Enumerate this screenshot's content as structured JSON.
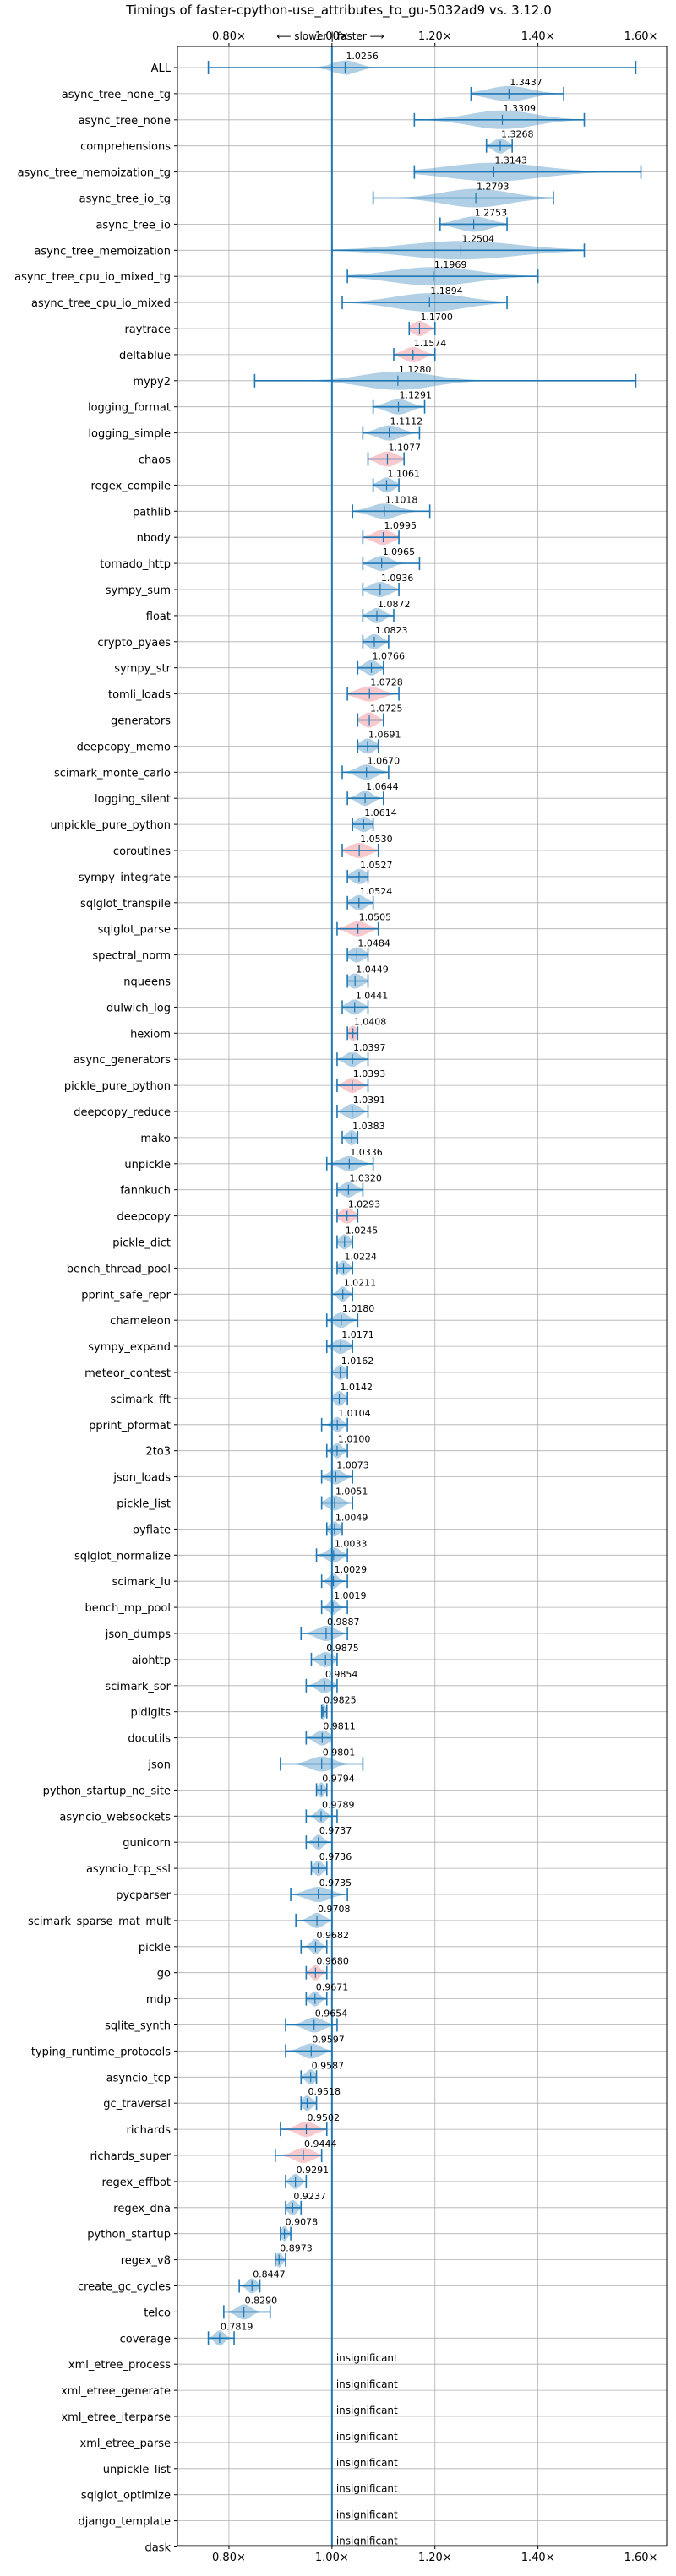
{
  "chart_data": {
    "type": "violin",
    "title": "Timings of faster-cpython-use_attributes_to_gu-5032ad9 vs. 3.12.0",
    "direction_annotation": "⟵ slower | faster ⟶",
    "xlim": [
      0.7,
      1.65
    ],
    "x_ticks": [
      {
        "value": 0.8,
        "label": "0.80×"
      },
      {
        "value": 1.0,
        "label": "1.00×"
      },
      {
        "value": 1.2,
        "label": "1.20×"
      },
      {
        "value": 1.4,
        "label": "1.40×"
      },
      {
        "value": 1.6,
        "label": "1.60×"
      }
    ],
    "grid": true,
    "reference_line": 1.0,
    "colors": {
      "normal": "#1f77b4",
      "highlight": "#e8646f"
    },
    "benchmarks": [
      {
        "name": "ALL",
        "value": 1.0256,
        "label": "1.0256",
        "lo": 0.76,
        "hi": 1.59,
        "spread": 0.05,
        "highlight": false
      },
      {
        "name": "async_tree_none_tg",
        "value": 1.3437,
        "label": "1.3437",
        "lo": 1.27,
        "hi": 1.45,
        "spread": 0.09,
        "highlight": false
      },
      {
        "name": "async_tree_none",
        "value": 1.3309,
        "label": "1.3309",
        "lo": 1.16,
        "hi": 1.49,
        "spread": 0.14,
        "highlight": false
      },
      {
        "name": "comprehensions",
        "value": 1.3268,
        "label": "1.3268",
        "lo": 1.3,
        "hi": 1.35,
        "spread": 0.03,
        "highlight": false
      },
      {
        "name": "async_tree_memoization_tg",
        "value": 1.3143,
        "label": "1.3143",
        "lo": 1.16,
        "hi": 1.6,
        "spread": 0.2,
        "highlight": false
      },
      {
        "name": "async_tree_io_tg",
        "value": 1.2793,
        "label": "1.2793",
        "lo": 1.08,
        "hi": 1.43,
        "spread": 0.14,
        "highlight": false
      },
      {
        "name": "async_tree_io",
        "value": 1.2753,
        "label": "1.2753",
        "lo": 1.21,
        "hi": 1.34,
        "spread": 0.07,
        "highlight": false
      },
      {
        "name": "async_tree_memoization",
        "value": 1.2504,
        "label": "1.2504",
        "lo": 1.0,
        "hi": 1.49,
        "spread": 0.24,
        "highlight": false
      },
      {
        "name": "async_tree_cpu_io_mixed_tg",
        "value": 1.1969,
        "label": "1.1969",
        "lo": 1.03,
        "hi": 1.4,
        "spread": 0.18,
        "highlight": false
      },
      {
        "name": "async_tree_cpu_io_mixed",
        "value": 1.1894,
        "label": "1.1894",
        "lo": 1.02,
        "hi": 1.34,
        "spread": 0.15,
        "highlight": false
      },
      {
        "name": "raytrace",
        "value": 1.17,
        "label": "1.1700",
        "lo": 1.15,
        "hi": 1.2,
        "spread": 0.03,
        "highlight": true
      },
      {
        "name": "deltablue",
        "value": 1.1574,
        "label": "1.1574",
        "lo": 1.12,
        "hi": 1.2,
        "spread": 0.04,
        "highlight": true
      },
      {
        "name": "mypy2",
        "value": 1.128,
        "label": "1.1280",
        "lo": 0.85,
        "hi": 1.59,
        "spread": 0.15,
        "highlight": false
      },
      {
        "name": "logging_format",
        "value": 1.1291,
        "label": "1.1291",
        "lo": 1.08,
        "hi": 1.18,
        "spread": 0.05,
        "highlight": false
      },
      {
        "name": "logging_simple",
        "value": 1.1112,
        "label": "1.1112",
        "lo": 1.06,
        "hi": 1.17,
        "spread": 0.05,
        "highlight": false
      },
      {
        "name": "chaos",
        "value": 1.1077,
        "label": "1.1077",
        "lo": 1.07,
        "hi": 1.14,
        "spread": 0.04,
        "highlight": true
      },
      {
        "name": "regex_compile",
        "value": 1.1061,
        "label": "1.1061",
        "lo": 1.08,
        "hi": 1.13,
        "spread": 0.03,
        "highlight": false
      },
      {
        "name": "pathlib",
        "value": 1.1018,
        "label": "1.1018",
        "lo": 1.04,
        "hi": 1.19,
        "spread": 0.06,
        "highlight": false
      },
      {
        "name": "nbody",
        "value": 1.0995,
        "label": "1.0995",
        "lo": 1.06,
        "hi": 1.13,
        "spread": 0.04,
        "highlight": true
      },
      {
        "name": "tornado_http",
        "value": 1.0965,
        "label": "1.0965",
        "lo": 1.06,
        "hi": 1.17,
        "spread": 0.04,
        "highlight": false
      },
      {
        "name": "sympy_sum",
        "value": 1.0936,
        "label": "1.0936",
        "lo": 1.06,
        "hi": 1.13,
        "spread": 0.04,
        "highlight": false
      },
      {
        "name": "float",
        "value": 1.0872,
        "label": "1.0872",
        "lo": 1.06,
        "hi": 1.12,
        "spread": 0.03,
        "highlight": false
      },
      {
        "name": "crypto_pyaes",
        "value": 1.0823,
        "label": "1.0823",
        "lo": 1.06,
        "hi": 1.11,
        "spread": 0.03,
        "highlight": false
      },
      {
        "name": "sympy_str",
        "value": 1.0766,
        "label": "1.0766",
        "lo": 1.05,
        "hi": 1.1,
        "spread": 0.03,
        "highlight": false
      },
      {
        "name": "tomli_loads",
        "value": 1.0728,
        "label": "1.0728",
        "lo": 1.03,
        "hi": 1.13,
        "spread": 0.05,
        "highlight": true
      },
      {
        "name": "generators",
        "value": 1.0725,
        "label": "1.0725",
        "lo": 1.05,
        "hi": 1.1,
        "spread": 0.03,
        "highlight": true
      },
      {
        "name": "deepcopy_memo",
        "value": 1.0691,
        "label": "1.0691",
        "lo": 1.05,
        "hi": 1.09,
        "spread": 0.03,
        "highlight": false
      },
      {
        "name": "scimark_monte_carlo",
        "value": 1.067,
        "label": "1.0670",
        "lo": 1.02,
        "hi": 1.11,
        "spread": 0.04,
        "highlight": false
      },
      {
        "name": "logging_silent",
        "value": 1.0644,
        "label": "1.0644",
        "lo": 1.03,
        "hi": 1.1,
        "spread": 0.03,
        "highlight": false
      },
      {
        "name": "unpickle_pure_python",
        "value": 1.0614,
        "label": "1.0614",
        "lo": 1.04,
        "hi": 1.08,
        "spread": 0.03,
        "highlight": false
      },
      {
        "name": "coroutines",
        "value": 1.053,
        "label": "1.0530",
        "lo": 1.02,
        "hi": 1.09,
        "spread": 0.04,
        "highlight": true
      },
      {
        "name": "sympy_integrate",
        "value": 1.0527,
        "label": "1.0527",
        "lo": 1.03,
        "hi": 1.07,
        "spread": 0.03,
        "highlight": false
      },
      {
        "name": "sqlglot_transpile",
        "value": 1.0524,
        "label": "1.0524",
        "lo": 1.03,
        "hi": 1.08,
        "spread": 0.03,
        "highlight": false
      },
      {
        "name": "sqlglot_parse",
        "value": 1.0505,
        "label": "1.0505",
        "lo": 1.01,
        "hi": 1.09,
        "spread": 0.04,
        "highlight": true
      },
      {
        "name": "spectral_norm",
        "value": 1.0484,
        "label": "1.0484",
        "lo": 1.03,
        "hi": 1.07,
        "spread": 0.03,
        "highlight": false
      },
      {
        "name": "nqueens",
        "value": 1.0449,
        "label": "1.0449",
        "lo": 1.03,
        "hi": 1.07,
        "spread": 0.03,
        "highlight": false
      },
      {
        "name": "dulwich_log",
        "value": 1.0441,
        "label": "1.0441",
        "lo": 1.02,
        "hi": 1.07,
        "spread": 0.03,
        "highlight": false
      },
      {
        "name": "hexiom",
        "value": 1.0408,
        "label": "1.0408",
        "lo": 1.03,
        "hi": 1.05,
        "spread": 0.02,
        "highlight": true
      },
      {
        "name": "async_generators",
        "value": 1.0397,
        "label": "1.0397",
        "lo": 1.01,
        "hi": 1.07,
        "spread": 0.03,
        "highlight": false
      },
      {
        "name": "pickle_pure_python",
        "value": 1.0393,
        "label": "1.0393",
        "lo": 1.01,
        "hi": 1.07,
        "spread": 0.03,
        "highlight": true
      },
      {
        "name": "deepcopy_reduce",
        "value": 1.0391,
        "label": "1.0391",
        "lo": 1.01,
        "hi": 1.07,
        "spread": 0.03,
        "highlight": false
      },
      {
        "name": "mako",
        "value": 1.0383,
        "label": "1.0383",
        "lo": 1.02,
        "hi": 1.05,
        "spread": 0.02,
        "highlight": false
      },
      {
        "name": "unpickle",
        "value": 1.0336,
        "label": "1.0336",
        "lo": 0.99,
        "hi": 1.08,
        "spread": 0.04,
        "highlight": false
      },
      {
        "name": "fannkuch",
        "value": 1.032,
        "label": "1.0320",
        "lo": 1.01,
        "hi": 1.06,
        "spread": 0.03,
        "highlight": false
      },
      {
        "name": "deepcopy",
        "value": 1.0293,
        "label": "1.0293",
        "lo": 1.01,
        "hi": 1.05,
        "spread": 0.03,
        "highlight": true
      },
      {
        "name": "pickle_dict",
        "value": 1.0245,
        "label": "1.0245",
        "lo": 1.01,
        "hi": 1.04,
        "spread": 0.02,
        "highlight": false
      },
      {
        "name": "bench_thread_pool",
        "value": 1.0224,
        "label": "1.0224",
        "lo": 1.01,
        "hi": 1.04,
        "spread": 0.02,
        "highlight": false
      },
      {
        "name": "pprint_safe_repr",
        "value": 1.0211,
        "label": "1.0211",
        "lo": 1.0,
        "hi": 1.04,
        "spread": 0.02,
        "highlight": false
      },
      {
        "name": "chameleon",
        "value": 1.018,
        "label": "1.0180",
        "lo": 0.99,
        "hi": 1.05,
        "spread": 0.03,
        "highlight": false
      },
      {
        "name": "sympy_expand",
        "value": 1.0171,
        "label": "1.0171",
        "lo": 0.99,
        "hi": 1.04,
        "spread": 0.03,
        "highlight": false
      },
      {
        "name": "meteor_contest",
        "value": 1.0162,
        "label": "1.0162",
        "lo": 1.0,
        "hi": 1.03,
        "spread": 0.02,
        "highlight": false
      },
      {
        "name": "scimark_fft",
        "value": 1.0142,
        "label": "1.0142",
        "lo": 1.0,
        "hi": 1.03,
        "spread": 0.02,
        "highlight": false
      },
      {
        "name": "pprint_pformat",
        "value": 1.0104,
        "label": "1.0104",
        "lo": 0.98,
        "hi": 1.03,
        "spread": 0.02,
        "highlight": false
      },
      {
        "name": "2to3",
        "value": 1.01,
        "label": "1.0100",
        "lo": 0.99,
        "hi": 1.03,
        "spread": 0.02,
        "highlight": false
      },
      {
        "name": "json_loads",
        "value": 1.0073,
        "label": "1.0073",
        "lo": 0.98,
        "hi": 1.04,
        "spread": 0.03,
        "highlight": false
      },
      {
        "name": "pickle_list",
        "value": 1.0051,
        "label": "1.0051",
        "lo": 0.98,
        "hi": 1.04,
        "spread": 0.03,
        "highlight": false
      },
      {
        "name": "pyflate",
        "value": 1.0049,
        "label": "1.0049",
        "lo": 0.99,
        "hi": 1.02,
        "spread": 0.02,
        "highlight": false
      },
      {
        "name": "sqlglot_normalize",
        "value": 1.0033,
        "label": "1.0033",
        "lo": 0.97,
        "hi": 1.03,
        "spread": 0.03,
        "highlight": false
      },
      {
        "name": "scimark_lu",
        "value": 1.0029,
        "label": "1.0029",
        "lo": 0.98,
        "hi": 1.03,
        "spread": 0.02,
        "highlight": false
      },
      {
        "name": "bench_mp_pool",
        "value": 1.0019,
        "label": "1.0019",
        "lo": 0.98,
        "hi": 1.03,
        "spread": 0.02,
        "highlight": false
      },
      {
        "name": "json_dumps",
        "value": 0.9887,
        "label": "0.9887",
        "lo": 0.94,
        "hi": 1.03,
        "spread": 0.04,
        "highlight": false
      },
      {
        "name": "aiohttp",
        "value": 0.9875,
        "label": "0.9875",
        "lo": 0.96,
        "hi": 1.01,
        "spread": 0.03,
        "highlight": false
      },
      {
        "name": "scimark_sor",
        "value": 0.9854,
        "label": "0.9854",
        "lo": 0.95,
        "hi": 1.01,
        "spread": 0.03,
        "highlight": false
      },
      {
        "name": "pidigits",
        "value": 0.9825,
        "label": "0.9825",
        "lo": 0.98,
        "hi": 0.99,
        "spread": 0.01,
        "highlight": false
      },
      {
        "name": "docutils",
        "value": 0.9811,
        "label": "0.9811",
        "lo": 0.95,
        "hi": 1.0,
        "spread": 0.03,
        "highlight": false
      },
      {
        "name": "json",
        "value": 0.9801,
        "label": "0.9801",
        "lo": 0.9,
        "hi": 1.06,
        "spread": 0.05,
        "highlight": false
      },
      {
        "name": "python_startup_no_site",
        "value": 0.9794,
        "label": "0.9794",
        "lo": 0.97,
        "hi": 0.99,
        "spread": 0.01,
        "highlight": false
      },
      {
        "name": "asyncio_websockets",
        "value": 0.9789,
        "label": "0.9789",
        "lo": 0.95,
        "hi": 1.01,
        "spread": 0.02,
        "highlight": false
      },
      {
        "name": "gunicorn",
        "value": 0.9737,
        "label": "0.9737",
        "lo": 0.95,
        "hi": 1.0,
        "spread": 0.02,
        "highlight": false
      },
      {
        "name": "asyncio_tcp_ssl",
        "value": 0.9736,
        "label": "0.9736",
        "lo": 0.96,
        "hi": 0.99,
        "spread": 0.02,
        "highlight": false
      },
      {
        "name": "pycparser",
        "value": 0.9735,
        "label": "0.9735",
        "lo": 0.92,
        "hi": 1.03,
        "spread": 0.05,
        "highlight": false
      },
      {
        "name": "scimark_sparse_mat_mult",
        "value": 0.9708,
        "label": "0.9708",
        "lo": 0.93,
        "hi": 1.0,
        "spread": 0.03,
        "highlight": false
      },
      {
        "name": "pickle",
        "value": 0.9682,
        "label": "0.9682",
        "lo": 0.94,
        "hi": 0.99,
        "spread": 0.02,
        "highlight": false
      },
      {
        "name": "go",
        "value": 0.968,
        "label": "0.9680",
        "lo": 0.95,
        "hi": 0.99,
        "spread": 0.02,
        "highlight": true
      },
      {
        "name": "mdp",
        "value": 0.9671,
        "label": "0.9671",
        "lo": 0.95,
        "hi": 0.99,
        "spread": 0.02,
        "highlight": false
      },
      {
        "name": "sqlite_synth",
        "value": 0.9654,
        "label": "0.9654",
        "lo": 0.91,
        "hi": 1.01,
        "spread": 0.04,
        "highlight": false
      },
      {
        "name": "typing_runtime_protocols",
        "value": 0.9597,
        "label": "0.9597",
        "lo": 0.91,
        "hi": 1.0,
        "spread": 0.04,
        "highlight": false
      },
      {
        "name": "asyncio_tcp",
        "value": 0.9587,
        "label": "0.9587",
        "lo": 0.94,
        "hi": 0.97,
        "spread": 0.02,
        "highlight": false
      },
      {
        "name": "gc_traversal",
        "value": 0.9518,
        "label": "0.9518",
        "lo": 0.94,
        "hi": 0.97,
        "spread": 0.02,
        "highlight": false
      },
      {
        "name": "richards",
        "value": 0.9502,
        "label": "0.9502",
        "lo": 0.9,
        "hi": 0.99,
        "spread": 0.04,
        "highlight": true
      },
      {
        "name": "richards_super",
        "value": 0.9444,
        "label": "0.9444",
        "lo": 0.89,
        "hi": 0.98,
        "spread": 0.04,
        "highlight": true
      },
      {
        "name": "regex_effbot",
        "value": 0.9291,
        "label": "0.9291",
        "lo": 0.91,
        "hi": 0.95,
        "spread": 0.02,
        "highlight": false
      },
      {
        "name": "regex_dna",
        "value": 0.9237,
        "label": "0.9237",
        "lo": 0.91,
        "hi": 0.94,
        "spread": 0.02,
        "highlight": false
      },
      {
        "name": "python_startup",
        "value": 0.9078,
        "label": "0.9078",
        "lo": 0.9,
        "hi": 0.92,
        "spread": 0.01,
        "highlight": false
      },
      {
        "name": "regex_v8",
        "value": 0.8973,
        "label": "0.8973",
        "lo": 0.89,
        "hi": 0.91,
        "spread": 0.01,
        "highlight": false
      },
      {
        "name": "create_gc_cycles",
        "value": 0.8447,
        "label": "0.8447",
        "lo": 0.82,
        "hi": 0.86,
        "spread": 0.02,
        "highlight": false
      },
      {
        "name": "telco",
        "value": 0.829,
        "label": "0.8290",
        "lo": 0.79,
        "hi": 0.88,
        "spread": 0.03,
        "highlight": false
      },
      {
        "name": "coverage",
        "value": 0.7819,
        "label": "0.7819",
        "lo": 0.76,
        "hi": 0.81,
        "spread": 0.02,
        "highlight": false
      },
      {
        "name": "xml_etree_process",
        "insignificant": true,
        "label": "insignificant"
      },
      {
        "name": "xml_etree_generate",
        "insignificant": true,
        "label": "insignificant"
      },
      {
        "name": "xml_etree_iterparse",
        "insignificant": true,
        "label": "insignificant"
      },
      {
        "name": "xml_etree_parse",
        "insignificant": true,
        "label": "insignificant"
      },
      {
        "name": "unpickle_list",
        "insignificant": true,
        "label": "insignificant"
      },
      {
        "name": "sqlglot_optimize",
        "insignificant": true,
        "label": "insignificant"
      },
      {
        "name": "django_template",
        "insignificant": true,
        "label": "insignificant"
      },
      {
        "name": "dask",
        "insignificant": true,
        "label": "insignificant"
      }
    ]
  }
}
